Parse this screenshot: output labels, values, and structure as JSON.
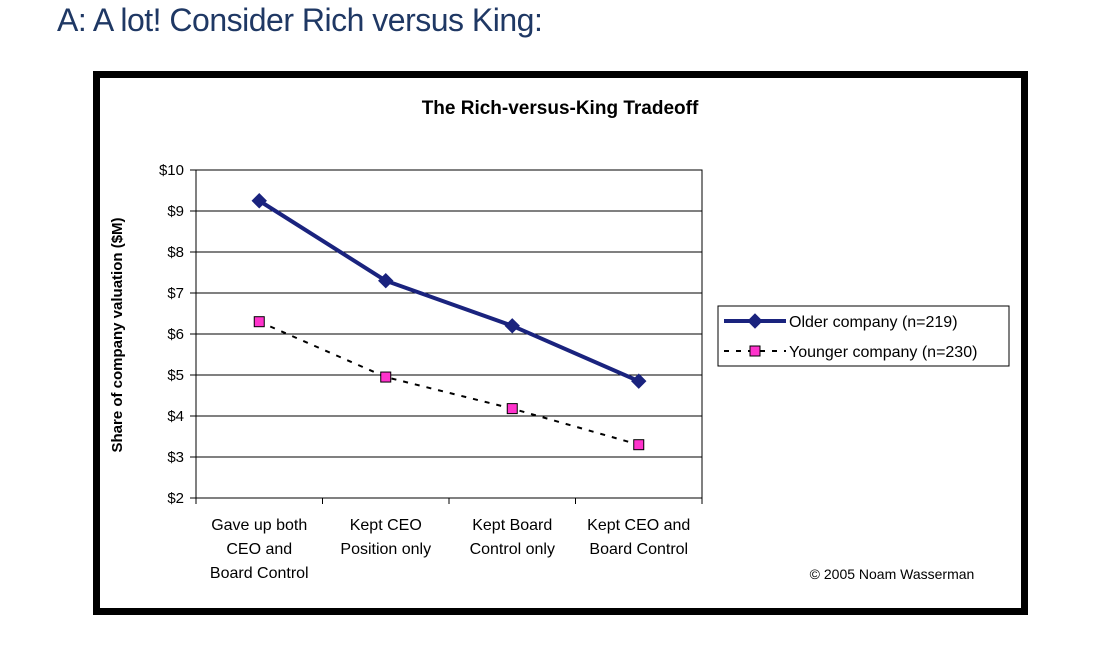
{
  "heading": "A: A lot! Consider Rich versus King:",
  "chart_data": {
    "type": "line",
    "title": "The Rich-versus-King Tradeoff",
    "ylabel": "Share of company valuation ($M)",
    "xlabel": "",
    "ylim": [
      2,
      10
    ],
    "yticks": [
      "$2",
      "$3",
      "$4",
      "$5",
      "$6",
      "$7",
      "$8",
      "$9",
      "$10"
    ],
    "categories": [
      [
        "Gave up both",
        "CEO and",
        "Board Control"
      ],
      [
        "Kept CEO",
        "Position only"
      ],
      [
        "Kept Board",
        "Control only"
      ],
      [
        "Kept CEO and",
        "Board Control"
      ]
    ],
    "grid": true,
    "legend_position": "right",
    "series": [
      {
        "name": "Older company (n=219)",
        "values": [
          9.25,
          7.3,
          6.2,
          4.85
        ],
        "color": "#1a237e",
        "style": "solid",
        "marker": "diamond"
      },
      {
        "name": "Younger company (n=230)",
        "values": [
          6.3,
          4.95,
          4.18,
          3.3
        ],
        "color": "#000000",
        "marker_fill": "#ff33cc",
        "style": "dashed",
        "marker": "square"
      }
    ],
    "annotation": "© 2005 Noam Wasserman"
  }
}
